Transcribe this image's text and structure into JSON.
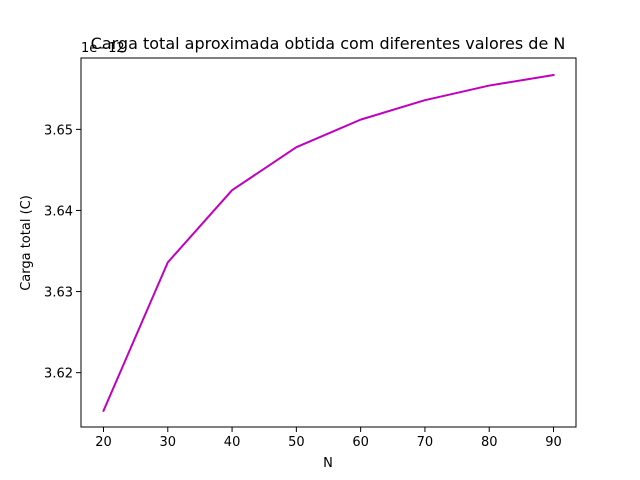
{
  "chart_data": {
    "type": "line",
    "title": "Carga total aproximada obtida com diferentes valores de N",
    "xlabel": "N",
    "ylabel": "Carga total (C)",
    "offset_label": "1e−12",
    "x": [
      20,
      30,
      40,
      50,
      60,
      70,
      80,
      90
    ],
    "series": [
      {
        "values": [
          3.6153,
          3.6336,
          3.6425,
          3.6478,
          3.6512,
          3.6536,
          3.6554,
          3.6567
        ],
        "color": "#bf00bf"
      }
    ],
    "xlim": [
      16.5,
      93.5
    ],
    "ylim": [
      3.6133,
      3.6588
    ],
    "xticks": [
      20,
      30,
      40,
      50,
      60,
      70,
      80,
      90
    ],
    "yticks": [
      3.62,
      3.63,
      3.64,
      3.65
    ],
    "ytick_labels": [
      "3.62",
      "3.63",
      "3.64",
      "3.65"
    ],
    "grid": false
  }
}
